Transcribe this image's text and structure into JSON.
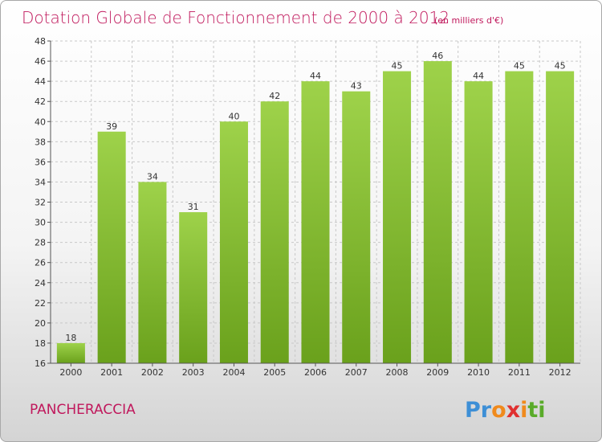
{
  "title": "Dotation Globale de Fonctionnement de 2000 à 2012",
  "subtitle": "(en milliers d'€)",
  "commune": "PANCHERACCIA",
  "logo_text": "Proxiti",
  "colors": {
    "title": "#c0185c",
    "bar_light": "#9ed24a",
    "bar_dark": "#6aa11c",
    "grid": "#c8c8c8",
    "axis": "#555555"
  },
  "chart_data": {
    "type": "bar",
    "categories": [
      "2000",
      "2001",
      "2002",
      "2003",
      "2004",
      "2005",
      "2006",
      "2007",
      "2008",
      "2009",
      "2010",
      "2011",
      "2012"
    ],
    "values": [
      18,
      39,
      34,
      31,
      40,
      42,
      44,
      43,
      45,
      46,
      44,
      45,
      45
    ],
    "title": "Dotation Globale de Fonctionnement de 2000 à 2012",
    "subtitle": "(en milliers d'€)",
    "xlabel": "",
    "ylabel": "",
    "ylim": [
      16,
      48
    ],
    "yticks": [
      16,
      18,
      20,
      22,
      24,
      26,
      28,
      30,
      32,
      34,
      36,
      38,
      40,
      42,
      44,
      46,
      48
    ],
    "grid": true,
    "data_labels": true
  }
}
